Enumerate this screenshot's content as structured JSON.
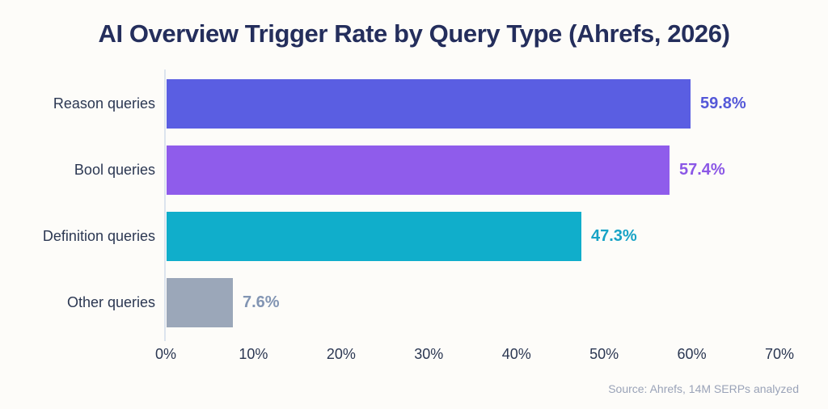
{
  "chart_data": {
    "type": "bar",
    "orientation": "horizontal",
    "title": "AI Overview Trigger Rate by Query Type (Ahrefs, 2026)",
    "categories": [
      "Reason queries",
      "Bool queries",
      "Definition queries",
      "Other queries"
    ],
    "values": [
      59.8,
      57.4,
      47.3,
      7.6
    ],
    "value_labels": [
      "59.8%",
      "57.4%",
      "47.3%",
      "7.6%"
    ],
    "bar_colors": [
      "#5a5ee2",
      "#8f5ceb",
      "#10aecb",
      "#9ba7b9"
    ],
    "value_label_colors": [
      "#5458d8",
      "#8b57e6",
      "#17a3c6",
      "#8295b3"
    ],
    "xlabel": "",
    "ylabel": "",
    "xlim": [
      0,
      70
    ],
    "x_ticks": [
      "0%",
      "10%",
      "20%",
      "30%",
      "40%",
      "50%",
      "60%",
      "70%"
    ],
    "x_tick_values": [
      0,
      10,
      20,
      30,
      40,
      50,
      60,
      70
    ],
    "grid": false,
    "legend": null,
    "source": "Source: Ahrefs, 14M SERPs analyzed"
  },
  "colors": {
    "background": "#fdfcf9",
    "title_text": "#242e5c",
    "axis_text": "#2b3752",
    "axis_line": "#dce4ee",
    "source_text": "#9aa3b8"
  },
  "layout_hint": {
    "legend_position": "none"
  }
}
